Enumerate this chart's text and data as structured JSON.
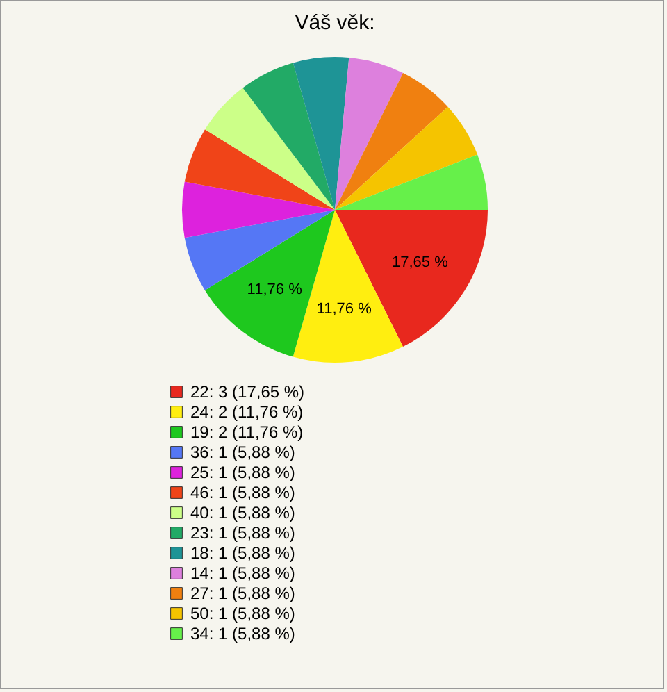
{
  "chart_data": {
    "type": "pie",
    "title": "Váš věk:",
    "categories": [
      "22: 3 (17,65 %)",
      "24: 2 (11,76 %)",
      "19: 2 (11,76 %)",
      "36: 1 (5,88 %)",
      "25: 1 (5,88 %)",
      "46: 1 (5,88 %)",
      "40: 1 (5,88 %)",
      "23: 1 (5,88 %)",
      "18: 1 (5,88 %)",
      "14: 1 (5,88 %)",
      "27: 1 (5,88 %)",
      "50: 1 (5,88 %)",
      "34: 1 (5,88 %)"
    ],
    "values": [
      17.65,
      11.76,
      11.76,
      5.88,
      5.88,
      5.88,
      5.88,
      5.88,
      5.88,
      5.88,
      5.88,
      5.88,
      5.88
    ],
    "colors": [
      "#e8281e",
      "#ffee10",
      "#1ec81e",
      "#5577f5",
      "#dd22dd",
      "#f04418",
      "#ccff88",
      "#22aa66",
      "#1e9496",
      "#dd80dd",
      "#f08010",
      "#f5c400",
      "#66f04a"
    ],
    "value_labels": [
      "17,65 %",
      "11,76 %",
      "11,76 %",
      null,
      null,
      null,
      null,
      null,
      null,
      null,
      null,
      null,
      null
    ],
    "legend": "bottom left"
  }
}
